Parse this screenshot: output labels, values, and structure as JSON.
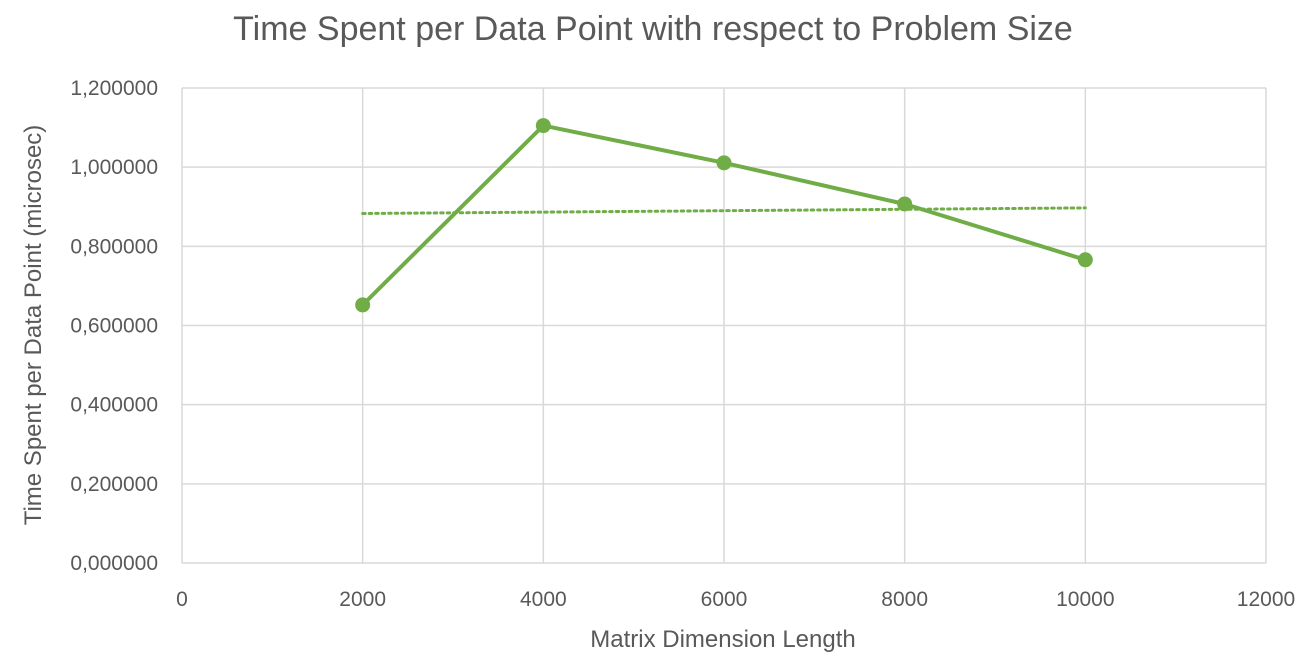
{
  "chart_data": {
    "type": "scatter",
    "title": "Time Spent per Data Point with respect to Problem Size",
    "xlabel": "Matrix Dimension Length",
    "ylabel": "Time Spent per Data Point (microsec)",
    "xlim": [
      0,
      12000
    ],
    "ylim": [
      0,
      1.2
    ],
    "x_ticks": [
      0,
      2000,
      4000,
      6000,
      8000,
      10000,
      12000
    ],
    "x_tick_labels": [
      "0",
      "2000",
      "4000",
      "6000",
      "8000",
      "10000",
      "12000"
    ],
    "y_ticks": [
      0,
      0.2,
      0.4,
      0.6,
      0.8,
      1.0,
      1.2
    ],
    "y_tick_labels": [
      "0,000000",
      "0,200000",
      "0,400000",
      "0,600000",
      "0,800000",
      "1,000000",
      "1,200000"
    ],
    "grid": true,
    "series": [
      {
        "x": [
          2000,
          4000,
          6000,
          8000,
          10000
        ],
        "y": [
          0.652,
          1.105,
          1.011,
          0.907,
          0.766
        ],
        "color": "#70ad47",
        "style": "solid",
        "markers": true
      },
      {
        "x": [
          2000,
          10000
        ],
        "y": [
          0.883,
          0.897
        ],
        "color": "#70ad47",
        "style": "dotted",
        "markers": false
      }
    ]
  }
}
